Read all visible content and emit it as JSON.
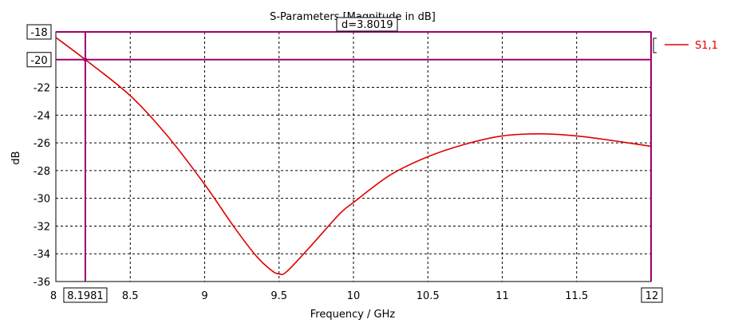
{
  "chart_data": {
    "type": "line",
    "title": "S-Parameters [Magnitude in dB]",
    "xlabel": "Frequency / GHz",
    "ylabel": "dB",
    "xlim": [
      8,
      12
    ],
    "ylim": [
      -36,
      -18
    ],
    "x_ticks": [
      8,
      8.5,
      9,
      9.5,
      10,
      10.5,
      11,
      11.5,
      12
    ],
    "x_tick_labels": [
      "8",
      "8.5",
      "9",
      "9.5",
      "10",
      "10.5",
      "11",
      "11.5",
      "12"
    ],
    "y_ticks": [
      -36,
      -34,
      -32,
      -30,
      -28,
      -26,
      -24,
      -22,
      -20,
      -18
    ],
    "y_tick_labels": [
      "-36",
      "-34",
      "-32",
      "-30",
      "-28",
      "-26",
      "-24",
      "-22",
      "-20",
      "-18"
    ],
    "grid": true,
    "legend_position": "top-right",
    "series": [
      {
        "name": "S1,1",
        "color": "#e00000",
        "x": [
          8.0,
          8.1981,
          8.5,
          8.75,
          9.0,
          9.2,
          9.35,
          9.45,
          9.5,
          9.55,
          9.7,
          9.9,
          10.0,
          10.25,
          10.5,
          10.75,
          11.0,
          11.25,
          11.5,
          11.75,
          12.0
        ],
        "y": [
          -18.4,
          -20.0,
          -22.6,
          -25.5,
          -29.0,
          -32.1,
          -34.2,
          -35.2,
          -35.45,
          -35.3,
          -33.6,
          -31.2,
          -30.3,
          -28.3,
          -27.0,
          -26.1,
          -25.5,
          -25.35,
          -25.5,
          -25.85,
          -26.25
        ]
      }
    ],
    "markers": {
      "color": "#a0006e",
      "vertical": {
        "x": 8.1981,
        "label": "8.1981"
      },
      "horizontal": [
        {
          "y": -18,
          "label": "-18"
        },
        {
          "y": -20,
          "label": "-20"
        }
      ],
      "right_x_label": "12",
      "delta_label": "d=3.8019"
    }
  }
}
